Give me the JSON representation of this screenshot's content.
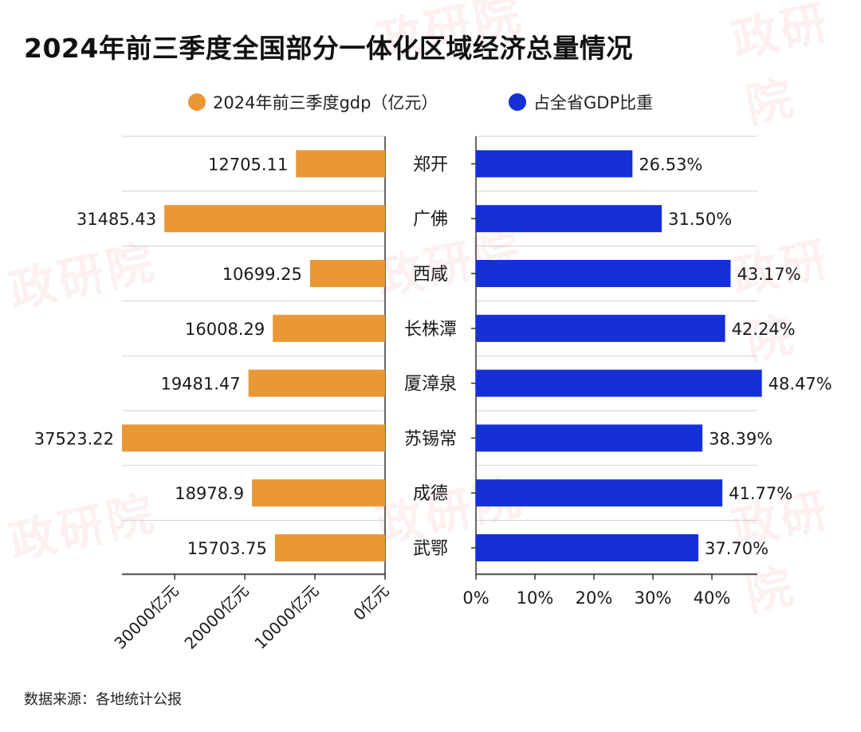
{
  "title": "2024年前三季度全国部分一体化区域经济总量情况",
  "source": "数据来源：各地统计公报",
  "watermark": "政研院",
  "colors": {
    "gdp": "#E99835",
    "share": "#1530D6",
    "grid": "#d0d0d0",
    "axis": "#333333"
  },
  "legend": [
    {
      "label": "2024年前三季度gdp（亿元）",
      "color": "#E99835"
    },
    {
      "label": "占全省GDP比重",
      "color": "#1530D6"
    }
  ],
  "chart_data": [
    {
      "type": "bar",
      "orientation": "horizontal-reversed",
      "series": [
        {
          "name": "2024年前三季度gdp（亿元）",
          "values": [
            12705.11,
            31485.43,
            10699.25,
            16008.29,
            19481.47,
            37523.22,
            18978.9,
            15703.75
          ]
        }
      ],
      "categories": [
        "郑开",
        "广佛",
        "西咸",
        "长株潭",
        "厦漳泉",
        "苏锡常",
        "成德",
        "武鄂"
      ],
      "value_labels": [
        "12705.11",
        "31485.43",
        "10699.25",
        "16008.29",
        "19481.47",
        "37523.22",
        "18978.9",
        "15703.75"
      ],
      "ticks": [
        30000,
        20000,
        10000,
        0
      ],
      "tick_labels": [
        "30000亿元",
        "20000亿元",
        "10000亿元",
        "0亿元"
      ],
      "xlim": [
        0,
        37523.22
      ]
    },
    {
      "type": "bar",
      "orientation": "horizontal",
      "series": [
        {
          "name": "占全省GDP比重",
          "values": [
            26.53,
            31.5,
            43.17,
            42.24,
            48.47,
            38.39,
            41.77,
            37.7
          ]
        }
      ],
      "categories": [
        "郑开",
        "广佛",
        "西咸",
        "长株潭",
        "厦漳泉",
        "苏锡常",
        "成德",
        "武鄂"
      ],
      "value_labels": [
        "26.53%",
        "31.50%",
        "43.17%",
        "42.24%",
        "48.47%",
        "38.39%",
        "41.77%",
        "37.70%"
      ],
      "ticks": [
        0,
        10,
        20,
        30,
        40
      ],
      "tick_labels": [
        "0%",
        "10%",
        "20%",
        "30%",
        "40%"
      ],
      "xlim": [
        0,
        48.47
      ]
    }
  ]
}
